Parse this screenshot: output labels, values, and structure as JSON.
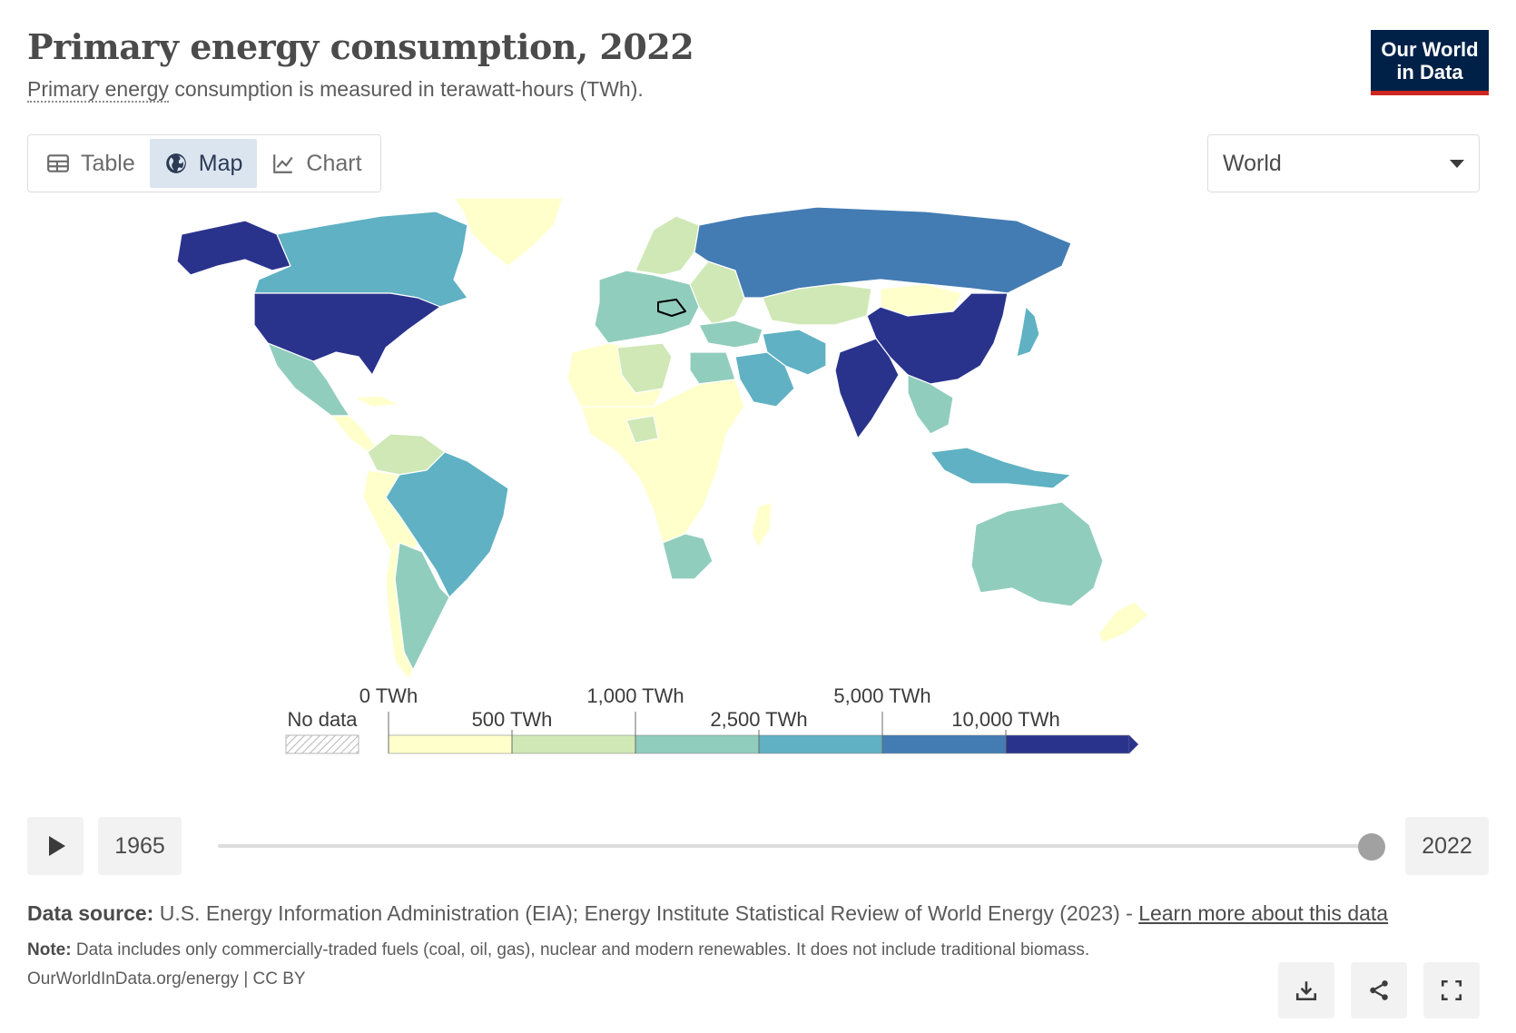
{
  "header": {
    "title": "Primary energy consumption, 2022",
    "subtitle_link": "Primary energy",
    "subtitle_rest": " consumption is measured in terawatt-hours (TWh).",
    "logo_line1": "Our World",
    "logo_line2": "in Data"
  },
  "tabs": [
    {
      "label": "Table",
      "icon": "table-icon",
      "active": false
    },
    {
      "label": "Map",
      "icon": "globe-icon",
      "active": true
    },
    {
      "label": "Chart",
      "icon": "line-chart-icon",
      "active": false
    }
  ],
  "entity_select": {
    "value": "World"
  },
  "legend": {
    "no_data_label": "No data",
    "top_labels": [
      "0 TWh",
      "1,000 TWh",
      "5,000 TWh"
    ],
    "bottom_labels": [
      "500 TWh",
      "2,500 TWh",
      "10,000 TWh"
    ],
    "colors": [
      "#ffffcc",
      "#cfe8b6",
      "#91cdbc",
      "#5fb1c3",
      "#437cb3",
      "#2a338c"
    ],
    "no_data_color": "#d3d3d3"
  },
  "map": {
    "colors": {
      "lowest": "#ffffcc",
      "low": "#cfe8b6",
      "mid": "#91cdbc",
      "midhigh": "#5fb1c3",
      "high": "#437cb3",
      "highest": "#2a338c"
    },
    "region_levels": {
      "usa": "highest",
      "china": "highest",
      "india": "highest",
      "russia": "high",
      "canada": "midhigh",
      "brazil": "midhigh",
      "iran": "midhigh",
      "saudi_arabia": "midhigh",
      "indonesia": "midhigh",
      "japan": "midhigh",
      "australia": "mid",
      "mexico": "mid",
      "argentina": "mid",
      "south_africa": "mid",
      "europe_west": "mid",
      "greenland": "lowest",
      "africa": "lowest",
      "kazakhstan": "low",
      "egypt": "mid",
      "mongolia": "lowest",
      "new_zealand": "lowest"
    }
  },
  "timeline": {
    "start_year": "1965",
    "end_year": "2022",
    "current_year": 2022
  },
  "footer": {
    "source_label": "Data source:",
    "source_text": " U.S. Energy Information Administration (EIA); Energy Institute Statistical Review of World Energy (2023) - ",
    "source_link": "Learn more about this data",
    "note_label": "Note:",
    "note_text": " Data includes only commercially-traded fuels (coal, oil, gas), nuclear and modern renewables. It does not include traditional biomass.",
    "url_text": "OurWorldInData.org/energy | CC BY"
  },
  "actions": [
    {
      "name": "download-button",
      "icon": "download-icon"
    },
    {
      "name": "share-button",
      "icon": "share-icon"
    },
    {
      "name": "fullscreen-button",
      "icon": "fullscreen-icon"
    }
  ]
}
